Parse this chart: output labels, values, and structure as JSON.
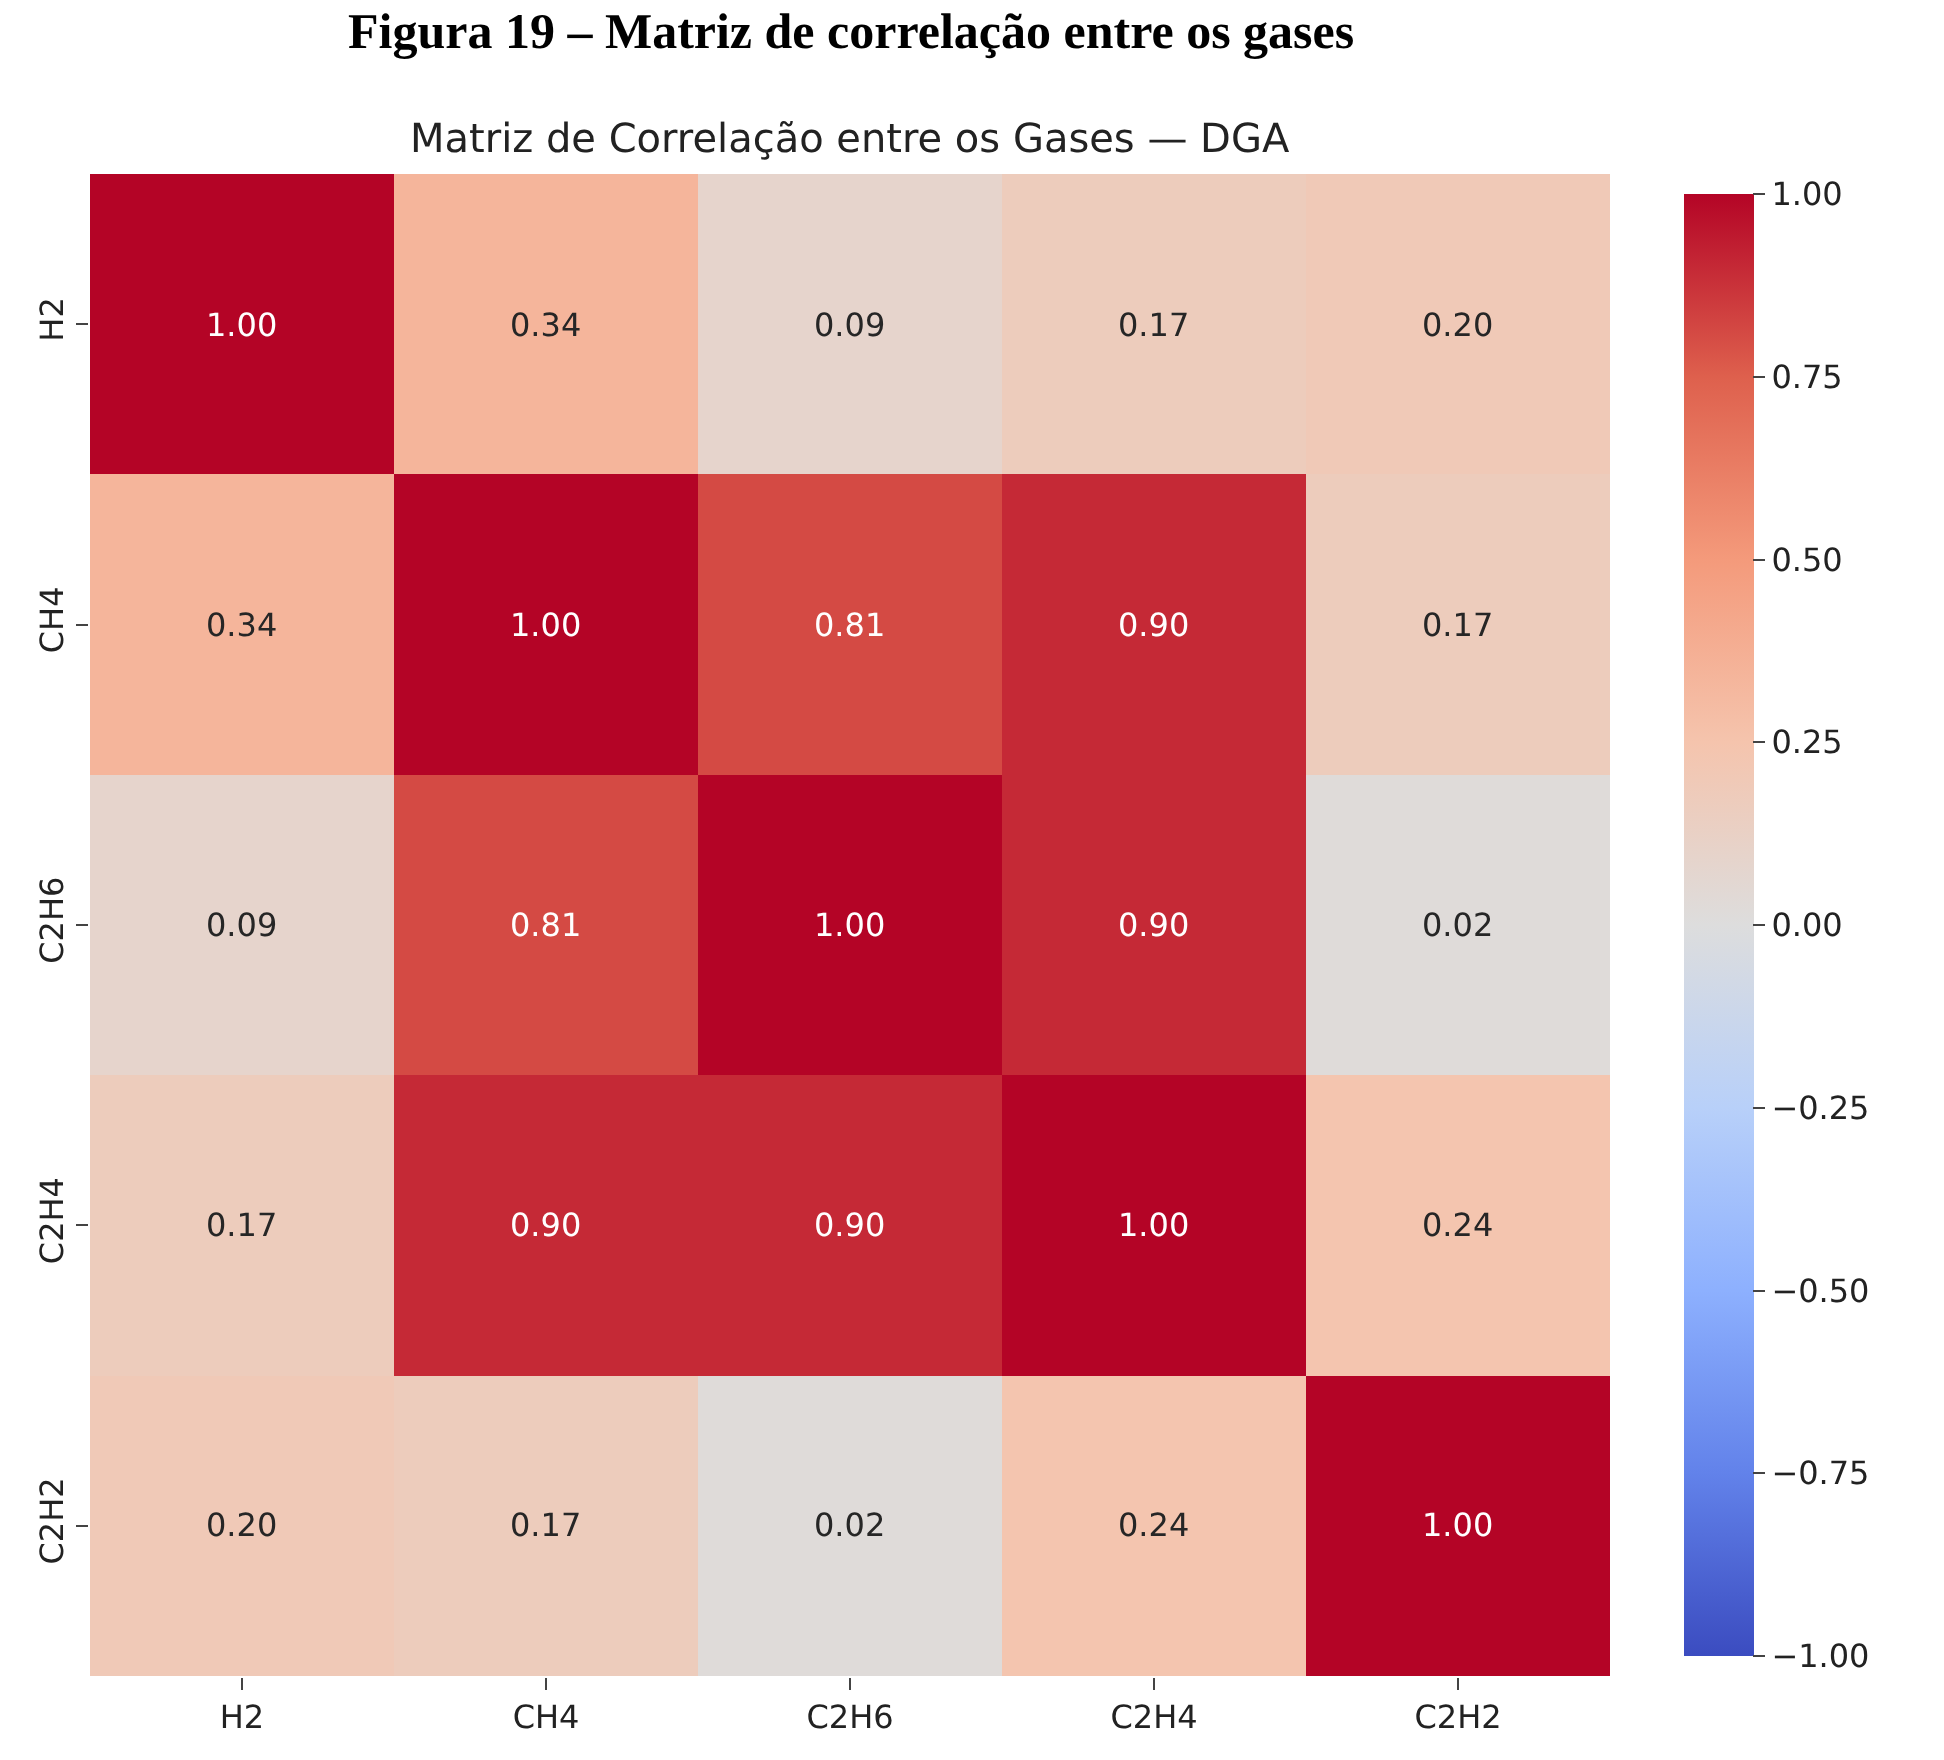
{
  "chart_data": {
    "type": "heatmap",
    "title": "Figura 19 – Matriz de correlação entre os gases",
    "subtitle": "Matriz de Correlação entre os Gases — DGA",
    "categories": [
      "H2",
      "CH4",
      "C2H6",
      "C2H4",
      "C2H2"
    ],
    "y_categories": [
      "H2",
      "CH4",
      "C2H6",
      "C2H4",
      "C2H2"
    ],
    "cells": [
      [
        1.0,
        0.34,
        0.09,
        0.17,
        0.2
      ],
      [
        0.34,
        1.0,
        0.81,
        0.9,
        0.17
      ],
      [
        0.09,
        0.81,
        1.0,
        0.9,
        0.02
      ],
      [
        0.17,
        0.9,
        0.9,
        1.0,
        0.24
      ],
      [
        0.2,
        0.17,
        0.02,
        0.24,
        1.0
      ]
    ],
    "cell_labels": [
      [
        "1.00",
        "0.34",
        "0.09",
        "0.17",
        "0.20"
      ],
      [
        "0.34",
        "1.00",
        "0.81",
        "0.90",
        "0.17"
      ],
      [
        "0.09",
        "0.81",
        "1.00",
        "0.90",
        "0.02"
      ],
      [
        "0.17",
        "0.90",
        "0.90",
        "1.00",
        "0.24"
      ],
      [
        "0.20",
        "0.17",
        "0.02",
        "0.24",
        "1.00"
      ]
    ],
    "clim": [
      -1,
      1
    ],
    "cticks": [
      {
        "value": -1,
        "label": "−1.00"
      },
      {
        "value": -0.75,
        "label": "−0.75"
      },
      {
        "value": -0.5,
        "label": "−0.50"
      },
      {
        "value": -0.25,
        "label": "−0.25"
      },
      {
        "value": 0,
        "label": "0.00"
      },
      {
        "value": 0.25,
        "label": "0.25"
      },
      {
        "value": 0.5,
        "label": "0.50"
      },
      {
        "value": 0.75,
        "label": "0.75"
      },
      {
        "value": 1,
        "label": "1.00"
      }
    ]
  }
}
